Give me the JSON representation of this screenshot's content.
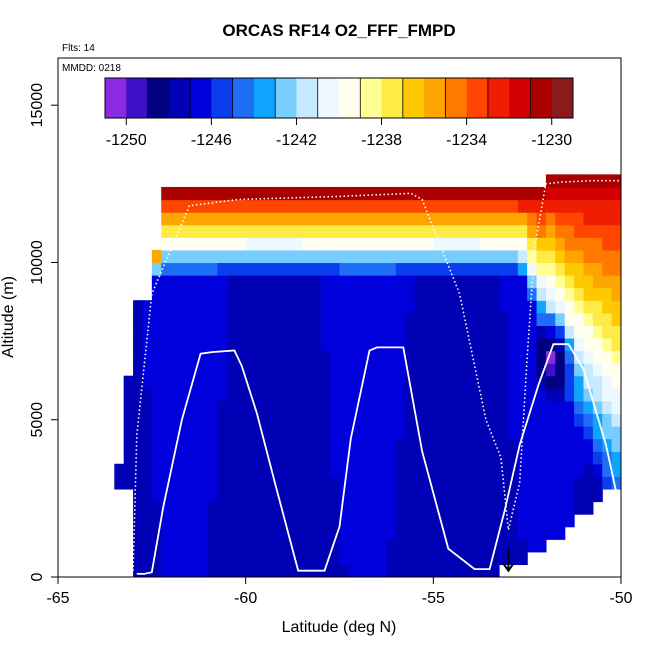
{
  "chart_data": {
    "type": "heatmap",
    "title": "ORCAS RF14 O2_FFF_FMPD",
    "notes": [
      "Flts: 14",
      "MMDD: 0218"
    ],
    "xlabel": "Latitude (deg N)",
    "ylabel": "Altitude (m)",
    "xlim": [
      -65,
      -50
    ],
    "ylim": [
      0,
      16500
    ],
    "x_ticks": [
      -65,
      -60,
      -55,
      -50
    ],
    "x_tick_labels": [
      "-65",
      "-60",
      "-55",
      "-50"
    ],
    "y_ticks": [
      0,
      5000,
      10000,
      15000
    ],
    "y_tick_labels": [
      "0",
      "5000",
      "10000",
      "15000"
    ],
    "colorbar": {
      "range": [
        -1251,
        -1229
      ],
      "ticks": [
        -1250,
        -1246,
        -1242,
        -1238,
        -1234,
        -1230
      ],
      "tick_labels": [
        "-1250",
        "-1246",
        "-1242",
        "-1238",
        "-1234",
        "-1230"
      ],
      "colors": [
        "#8a2be2",
        "#3d10c9",
        "#000080",
        "#0000b4",
        "#0000dc",
        "#0a3cf0",
        "#1e6ef5",
        "#0fa5ff",
        "#78cdff",
        "#c8eaff",
        "#eef8ff",
        "#fffff0",
        "#ffff96",
        "#ffeb46",
        "#ffc800",
        "#ffa500",
        "#ff7800",
        "#ff4600",
        "#f01e00",
        "#d20000",
        "#aa0000",
        "#8b1a1a"
      ]
    },
    "field_description": {
      "base_value": -1247.3,
      "top_gradient": {
        "from_altitude": 9600,
        "to_altitude": 12200,
        "top_value": -1231
      },
      "high_patch": {
        "lat": -51.8,
        "alt": 7000,
        "value": -1251
      },
      "southern_edge_lat": -63,
      "northern_edge_lat": -50
    },
    "flight_track": {
      "lat": [
        -62.9,
        -62.7,
        -62.5,
        -62.2,
        -61.7,
        -61.2,
        -60.9,
        -60.3,
        -60.1,
        -59.7,
        -59.2,
        -58.6,
        -57.9,
        -57.5,
        -57.2,
        -56.7,
        -56.5,
        -55.8,
        -55.3,
        -54.6,
        -53.9,
        -53.5,
        -53.1,
        -52.7,
        -52.2,
        -51.8,
        -51.4,
        -51.0,
        -50.4,
        -50.0
      ],
      "alt": [
        100,
        100,
        150,
        2200,
        5000,
        7100,
        7150,
        7200,
        6700,
        5200,
        2900,
        200,
        200,
        1600,
        4400,
        7200,
        7300,
        7300,
        4000,
        900,
        250,
        250,
        2100,
        4200,
        6100,
        7400,
        7400,
        6600,
        4200,
        2000
      ]
    },
    "flight_track_dotted": {
      "lat": [
        -63.0,
        -62.9,
        -62.5,
        -61.5,
        -60.2,
        -57.5,
        -55.6,
        -55.3,
        -54.3,
        -53.6,
        -53.2,
        -53.0,
        -52.7,
        -52.5,
        -52.3,
        -52.0,
        -51.6,
        -50.8,
        -50.0
      ],
      "alt": [
        200,
        4500,
        9000,
        11800,
        12000,
        12100,
        12200,
        12000,
        9000,
        5000,
        3800,
        1500,
        3000,
        7000,
        10500,
        12500,
        12550,
        12600,
        12600
      ]
    },
    "arrow_marker": {
      "lat": -53.0,
      "alt": 200
    }
  }
}
